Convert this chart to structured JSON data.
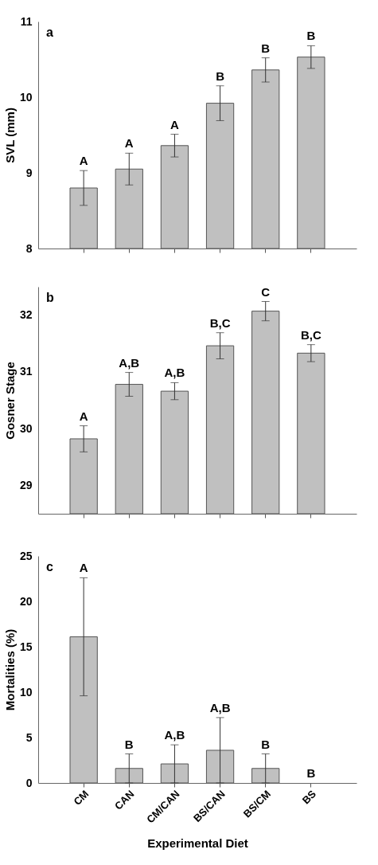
{
  "chart_data": [
    {
      "type": "bar",
      "ylabel": "SVL (mm)",
      "categories": [
        "CM",
        "CAN",
        "CM/CAN",
        "BS/CAN",
        "BS/CM",
        "BS"
      ],
      "values": [
        8.8,
        9.05,
        9.36,
        9.92,
        10.36,
        10.53
      ],
      "errors": [
        0.23,
        0.21,
        0.15,
        0.23,
        0.16,
        0.15
      ],
      "color": "#c0c0c0",
      "ylim": [
        8,
        11
      ],
      "yticks": [
        8,
        9,
        10,
        11
      ],
      "tick_labels": "y",
      "annotations": [
        "a",
        {
          "text": "A",
          "x": "CM",
          "y": 9.03
        },
        {
          "text": "A",
          "x": "CAN",
          "y": 9.26
        },
        {
          "text": "A",
          "x": "CM/CAN",
          "y": 9.51
        },
        {
          "text": "B",
          "x": "BS/CAN",
          "y": 10.15
        },
        {
          "text": "B",
          "x": "BS/CM",
          "y": 10.52
        },
        {
          "text": "B",
          "x": "BS",
          "y": 10.68
        }
      ]
    },
    {
      "type": "bar",
      "ylabel": "Gosner Stage",
      "categories": [
        "CM",
        "CAN",
        "CM/CAN",
        "BS/CAN",
        "BS/CM",
        "BS"
      ],
      "values": [
        29.82,
        30.78,
        30.66,
        31.46,
        32.07,
        31.33
      ],
      "errors": [
        0.23,
        0.21,
        0.15,
        0.23,
        0.17,
        0.15
      ],
      "color": "#c0c0c0",
      "ylim": [
        28.5,
        32.5
      ],
      "yticks": [
        29,
        30,
        31,
        32
      ],
      "tick_labels": "y",
      "annotations": [
        "b",
        {
          "text": "A",
          "x": "CM",
          "y": 30.05
        },
        {
          "text": "A,B",
          "x": "CAN",
          "y": 30.99
        },
        {
          "text": "A,B",
          "x": "CM/CAN",
          "y": 30.81
        },
        {
          "text": "B,C",
          "x": "BS/CAN",
          "y": 31.69
        },
        {
          "text": "C",
          "x": "BS/CM",
          "y": 32.24
        },
        {
          "text": "B,C",
          "x": "BS",
          "y": 31.48
        }
      ]
    },
    {
      "type": "bar",
      "ylabel": "Mortalities (%)",
      "xlabel": "Experimental Diet",
      "categories": [
        "CM",
        "CAN",
        "CM/CAN",
        "BS/CAN",
        "BS/CM",
        "BS"
      ],
      "values": [
        16.1,
        1.6,
        2.1,
        3.6,
        1.6,
        0
      ],
      "errors": [
        6.5,
        1.6,
        2.1,
        3.6,
        1.6,
        null
      ],
      "color": "#c0c0c0",
      "ylim": [
        0,
        25
      ],
      "yticks": [
        0,
        5,
        10,
        15,
        20,
        25
      ],
      "annotations": [
        "c",
        {
          "text": "A",
          "x": "CM",
          "y": 22.6
        },
        {
          "text": "B",
          "x": "CAN",
          "y": 3.2
        },
        {
          "text": "A,B",
          "x": "CM/CAN",
          "y": 4.2
        },
        {
          "text": "A,B",
          "x": "BS/CAN",
          "y": 7.2
        },
        {
          "text": "B",
          "x": "BS/CM",
          "y": 3.2
        },
        {
          "text": "B",
          "x": "BS",
          "y": 0
        }
      ]
    }
  ]
}
